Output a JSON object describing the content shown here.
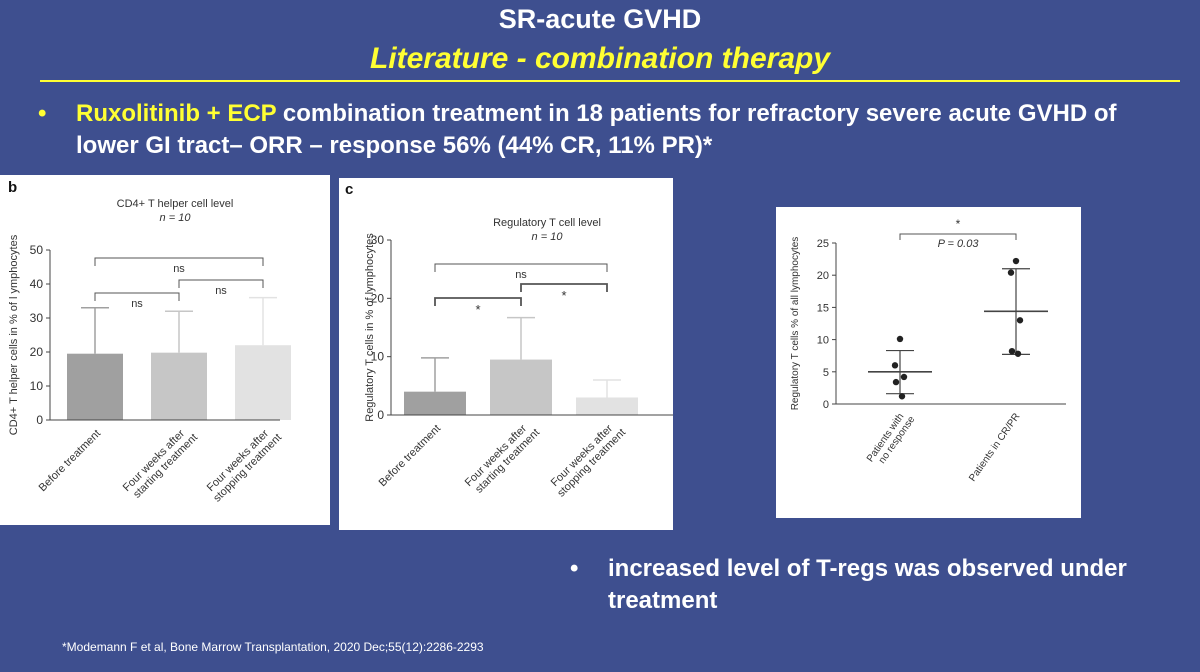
{
  "header": {
    "title": "SR-acute GVHD",
    "subtitle": "Literature - combination therapy"
  },
  "bullet1": {
    "highlight": "Ruxolitinib + ECP",
    "text": " combination treatment in 18 patients for refractory severe acute GVHD of lower GI tract– ORR – response 56% (44% CR, 11% PR)*"
  },
  "bullet2": {
    "text": "increased level of T-regs was observed under treatment"
  },
  "citation": "*Modemann F et al, Bone Marrow Transplantation, 2020  Dec;55(12):2286-2293",
  "colors": {
    "background": "#3e4f8f",
    "highlight": "#ffff33",
    "bar_dark": "#a0a0a0",
    "bar_mid": "#c6c6c6",
    "bar_light": "#e2e2e2"
  },
  "chart_data": [
    {
      "type": "bar",
      "panel_label": "b",
      "title": "CD4+ T helper cell level",
      "subtitle": "n = 10",
      "ylabel": "CD4+ T helper cells in % of l ymphocytes",
      "ylim": [
        0,
        50
      ],
      "yticks": [
        0,
        10,
        20,
        30,
        40,
        50
      ],
      "categories": [
        "Before treatment",
        "Four weeks after starting treatment",
        "Four weeks after stopping treatment"
      ],
      "category_lines": [
        [
          "Before treatment"
        ],
        [
          "Four weeks after",
          "starting treatment"
        ],
        [
          "Four weeks after",
          "stopping treatment"
        ]
      ],
      "values": [
        19.5,
        19.8,
        22
      ],
      "error_upper": [
        33,
        32,
        36
      ],
      "brackets": [
        {
          "from": 0,
          "to": 1,
          "label": "ns",
          "level": 1
        },
        {
          "from": 1,
          "to": 2,
          "label": "ns",
          "level": 1
        },
        {
          "from": 0,
          "to": 2,
          "label": "ns",
          "level": 2
        }
      ]
    },
    {
      "type": "bar",
      "panel_label": "c",
      "title": "Regulatory T  cell level",
      "subtitle": "n = 10",
      "ylabel": "Regulatory T cells in % of lymphocytes",
      "ylim": [
        0,
        30
      ],
      "yticks": [
        0,
        10,
        20,
        30
      ],
      "categories": [
        "Before treatment",
        "Four weeks after starting treatment",
        "Four weeks after stopping treatment"
      ],
      "category_lines": [
        [
          "Before treatment"
        ],
        [
          "Four weeks after",
          "starting treatment"
        ],
        [
          "Four weeks after",
          "stopping treatment"
        ]
      ],
      "values": [
        4,
        9.5,
        3
      ],
      "error_upper": [
        9.8,
        16.7,
        6
      ],
      "brackets": [
        {
          "from": 0,
          "to": 1,
          "label": "*",
          "level": 1
        },
        {
          "from": 1,
          "to": 2,
          "label": "*",
          "level": 1
        },
        {
          "from": 0,
          "to": 2,
          "label": "ns",
          "level": 2
        }
      ]
    },
    {
      "type": "scatter",
      "ylabel": "Regulatory T cells % of all lymphocytes",
      "ylim": [
        0,
        25
      ],
      "yticks": [
        0,
        5,
        10,
        15,
        20,
        25
      ],
      "categories": [
        "Patients with no response",
        "Patients in CR/PR"
      ],
      "category_lines": [
        [
          "Patients with",
          "no response"
        ],
        [
          "Patients in CR/PR"
        ]
      ],
      "groups": [
        {
          "points": [
            10.1,
            6,
            4.2,
            3.4,
            1.2
          ],
          "mean": 5,
          "sd_low": 1.6,
          "sd_high": 8.3
        },
        {
          "points": [
            22.2,
            20.4,
            13,
            8.2,
            7.8
          ],
          "mean": 14.4,
          "sd_low": 7.7,
          "sd_high": 21
        }
      ],
      "significance": {
        "star": "*",
        "p_label": "P = 0.03"
      }
    }
  ]
}
